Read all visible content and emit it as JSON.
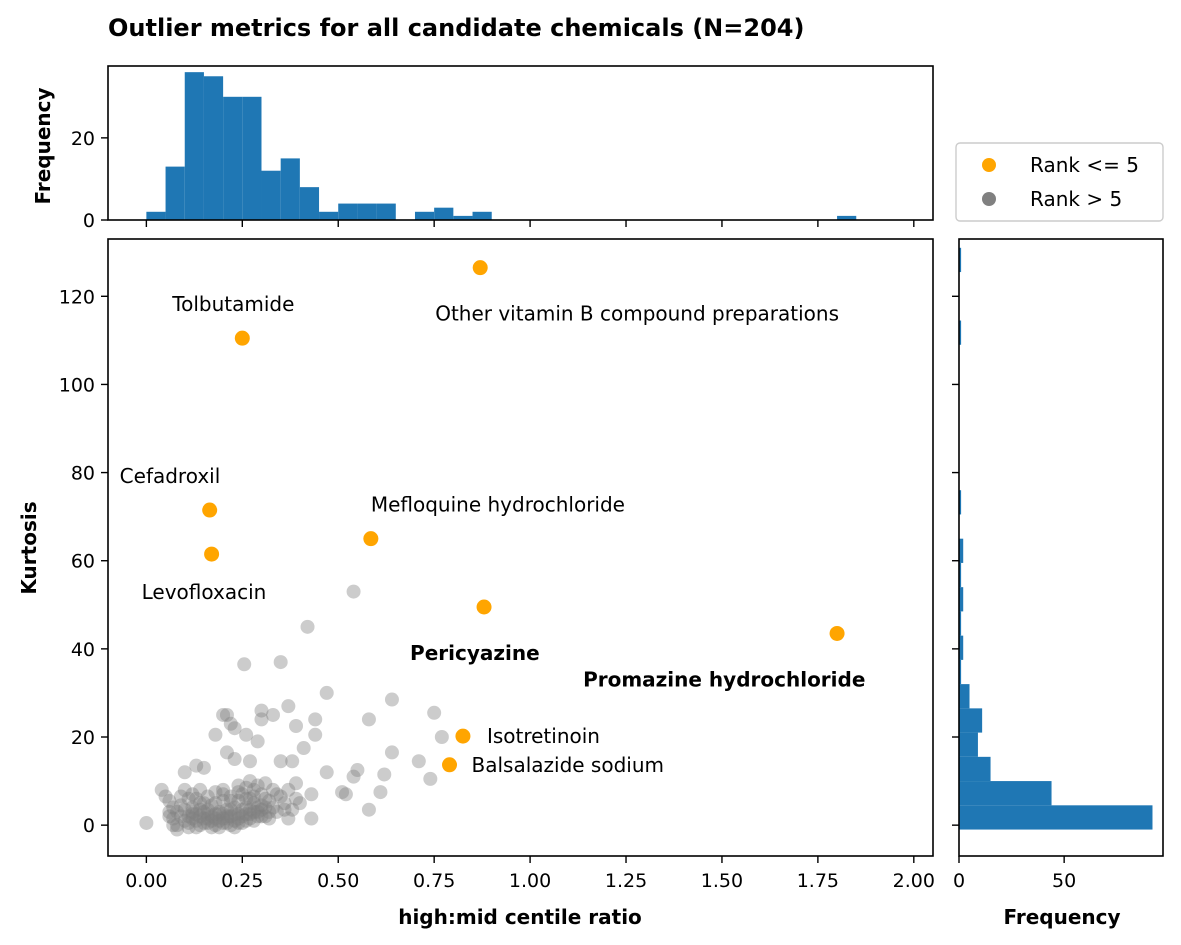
{
  "title": "Outlier metrics for all candidate chemicals (N=204)",
  "colors": {
    "rank_top": "#ffa500",
    "rank_rest": "#808080",
    "hist": "#1f77b4"
  },
  "chart_data": {
    "type": "scatter",
    "xlabel": "high:mid centile ratio",
    "ylabel": "Kurtosis",
    "xlim": [
      -0.1,
      2.05
    ],
    "ylim": [
      -7,
      133
    ],
    "xticks": [
      "0.00",
      "0.25",
      "0.50",
      "0.75",
      "1.00",
      "1.25",
      "1.50",
      "1.75",
      "2.00"
    ],
    "xtick_values": [
      0,
      0.25,
      0.5,
      0.75,
      1.0,
      1.25,
      1.5,
      1.75,
      2.0
    ],
    "yticks": [
      "0",
      "20",
      "40",
      "60",
      "80",
      "100",
      "120"
    ],
    "ytick_values": [
      0,
      20,
      40,
      60,
      80,
      100,
      120
    ],
    "legend": {
      "position": "right of top histogram",
      "entries": [
        {
          "label": "Rank <= 5",
          "color": "#ffa500"
        },
        {
          "label": "Rank > 5",
          "color": "#808080"
        }
      ]
    },
    "highlighted": [
      {
        "name": "Other vitamin B compound preparations",
        "x": 0.87,
        "y": 126.5,
        "bold": false
      },
      {
        "name": "Tolbutamide",
        "x": 0.25,
        "y": 110.5,
        "bold": false
      },
      {
        "name": "Cefadroxil",
        "x": 0.165,
        "y": 71.5,
        "bold": false
      },
      {
        "name": "Mefloquine hydrochloride",
        "x": 0.585,
        "y": 65.0,
        "bold": false
      },
      {
        "name": "Levofloxacin",
        "x": 0.17,
        "y": 61.5,
        "bold": false
      },
      {
        "name": "Pericyazine",
        "x": 0.88,
        "y": 49.5,
        "bold": true
      },
      {
        "name": "Promazine hydrochloride",
        "x": 1.8,
        "y": 43.5,
        "bold": true
      },
      {
        "name": "Isotretinoin",
        "x": 0.825,
        "y": 20.2,
        "bold": false
      },
      {
        "name": "Balsalazide sodium",
        "x": 0.79,
        "y": 13.7,
        "bold": false
      }
    ],
    "others": [
      [
        0.54,
        53
      ],
      [
        0.42,
        45
      ],
      [
        0.35,
        37
      ],
      [
        0.255,
        36.5
      ],
      [
        0.47,
        30
      ],
      [
        0.64,
        28.5
      ],
      [
        0.37,
        27
      ],
      [
        0.3,
        26
      ],
      [
        0.2,
        25
      ],
      [
        0.21,
        25
      ],
      [
        0.33,
        25
      ],
      [
        0.3,
        24
      ],
      [
        0.44,
        24
      ],
      [
        0.58,
        24
      ],
      [
        0.75,
        25.5
      ],
      [
        0.22,
        23
      ],
      [
        0.39,
        22.5
      ],
      [
        0.23,
        22
      ],
      [
        0.18,
        20.5
      ],
      [
        0.44,
        20.5
      ],
      [
        0.26,
        20.5
      ],
      [
        0.77,
        20
      ],
      [
        0.29,
        19
      ],
      [
        0.41,
        17.5
      ],
      [
        0.21,
        16.5
      ],
      [
        0.64,
        16.5
      ],
      [
        0.23,
        15
      ],
      [
        0.35,
        14.5
      ],
      [
        0.27,
        14.5
      ],
      [
        0.38,
        14.5
      ],
      [
        0.71,
        14.5
      ],
      [
        0.15,
        13
      ],
      [
        0.13,
        13.5
      ],
      [
        0.1,
        12
      ],
      [
        0.55,
        12.5
      ],
      [
        0.62,
        11.5
      ],
      [
        0.54,
        11
      ],
      [
        0.47,
        12
      ],
      [
        0.74,
        10.5
      ],
      [
        0.27,
        10
      ],
      [
        0.29,
        9
      ],
      [
        0.31,
        9.5
      ],
      [
        0.33,
        8
      ],
      [
        0.39,
        9.5
      ],
      [
        0.37,
        8
      ],
      [
        0.24,
        9
      ],
      [
        0.2,
        8
      ],
      [
        0.04,
        8
      ],
      [
        0.28,
        8
      ],
      [
        0.43,
        7
      ],
      [
        0.52,
        7
      ],
      [
        0.51,
        7.5
      ],
      [
        0.61,
        7.5
      ],
      [
        0.39,
        6
      ],
      [
        0.36,
        5
      ],
      [
        0.34,
        3
      ],
      [
        0.3,
        2
      ],
      [
        0.32,
        1.5
      ],
      [
        0.37,
        1.5
      ],
      [
        0.43,
        1.5
      ],
      [
        0.58,
        3.5
      ],
      [
        0.13,
        6
      ],
      [
        0.15,
        5
      ],
      [
        0.06,
        5.5
      ],
      [
        0.07,
        4
      ],
      [
        0.08,
        3
      ],
      [
        0.09,
        6.5
      ],
      [
        0.11,
        6
      ],
      [
        0.12,
        4
      ],
      [
        0.14,
        3.5
      ],
      [
        0.16,
        2.5
      ],
      [
        0.17,
        4.5
      ],
      [
        0.18,
        1.5
      ],
      [
        0.19,
        3
      ],
      [
        0.2,
        5.5
      ],
      [
        0.21,
        2
      ],
      [
        0.22,
        6.5
      ],
      [
        0.23,
        4
      ],
      [
        0.24,
        2.5
      ],
      [
        0.25,
        7
      ],
      [
        0.26,
        1
      ],
      [
        0.27,
        3.5
      ],
      [
        0.28,
        5
      ],
      [
        0.29,
        2
      ],
      [
        0.3,
        4.5
      ],
      [
        0.31,
        6
      ],
      [
        0.32,
        3
      ],
      [
        0.07,
        1.5
      ],
      [
        0.08,
        0
      ],
      [
        0.09,
        2
      ],
      [
        0.1,
        1
      ],
      [
        0.11,
        0.5
      ],
      [
        0.12,
        2.5
      ],
      [
        0.13,
        1
      ],
      [
        0.14,
        0
      ],
      [
        0.15,
        1.5
      ],
      [
        0.16,
        0.5
      ],
      [
        0.17,
        2
      ],
      [
        0.18,
        0
      ],
      [
        0.19,
        1
      ],
      [
        0.2,
        0.5
      ],
      [
        0.21,
        1.5
      ],
      [
        0.22,
        0
      ],
      [
        0.23,
        1
      ],
      [
        0.24,
        0.5
      ],
      [
        0.25,
        2
      ],
      [
        0.26,
        4
      ],
      [
        0.27,
        6
      ],
      [
        0.28,
        1
      ],
      [
        0.12,
        3
      ],
      [
        0.14,
        5
      ],
      [
        0.16,
        3.5
      ],
      [
        0.18,
        5
      ],
      [
        0.2,
        2.5
      ],
      [
        0.22,
        3.5
      ],
      [
        0.24,
        5.5
      ],
      [
        0.26,
        6
      ],
      [
        0.1,
        3.5
      ],
      [
        0.09,
        4.5
      ],
      [
        0.06,
        2
      ],
      [
        0.07,
        0
      ],
      [
        0.08,
        -1
      ],
      [
        0.11,
        -0.5
      ],
      [
        0.13,
        -0.5
      ],
      [
        0.15,
        0.5
      ],
      [
        0.17,
        -0.5
      ],
      [
        0.19,
        -0.5
      ],
      [
        0.21,
        0.5
      ],
      [
        0.23,
        -0.5
      ],
      [
        0.25,
        0.5
      ],
      [
        0.27,
        2.5
      ],
      [
        0.29,
        4
      ],
      [
        0.31,
        2
      ],
      [
        0.33,
        4
      ],
      [
        0.35,
        6.5
      ],
      [
        0.36,
        3.5
      ],
      [
        0.38,
        3.5
      ],
      [
        0.4,
        5
      ],
      [
        0.0,
        0.5
      ],
      [
        0.05,
        6.5
      ],
      [
        0.06,
        3
      ],
      [
        0.1,
        8
      ],
      [
        0.12,
        7
      ],
      [
        0.14,
        8
      ],
      [
        0.16,
        6.5
      ],
      [
        0.18,
        7.5
      ],
      [
        0.2,
        7
      ],
      [
        0.22,
        5.5
      ],
      [
        0.24,
        7.5
      ],
      [
        0.26,
        8.5
      ],
      [
        0.28,
        6.5
      ],
      [
        0.3,
        7
      ],
      [
        0.32,
        5.5
      ],
      [
        0.34,
        7
      ],
      [
        0.11,
        2
      ],
      [
        0.13,
        2.5
      ],
      [
        0.15,
        3
      ],
      [
        0.17,
        1
      ],
      [
        0.19,
        2.5
      ],
      [
        0.21,
        3.5
      ],
      [
        0.23,
        2.5
      ],
      [
        0.25,
        3.5
      ],
      [
        0.27,
        1.5
      ],
      [
        0.29,
        3
      ],
      [
        0.31,
        4
      ],
      [
        0.12,
        1.5
      ],
      [
        0.14,
        2
      ],
      [
        0.16,
        1.5
      ],
      [
        0.18,
        2.5
      ],
      [
        0.2,
        1.5
      ],
      [
        0.22,
        2
      ],
      [
        0.24,
        1.5
      ],
      [
        0.26,
        2.5
      ],
      [
        0.28,
        3
      ],
      [
        0.3,
        3.5
      ]
    ],
    "top_histogram": {
      "ylabel": "Frequency",
      "yticks": [
        "0",
        "20"
      ],
      "ytick_values": [
        0,
        20
      ],
      "ylim": [
        0,
        37.5
      ],
      "bin_edges": [
        0.0,
        0.05,
        0.1,
        0.15,
        0.2,
        0.25,
        0.3,
        0.35,
        0.4,
        0.45,
        0.5,
        0.55,
        0.6,
        0.65,
        0.7,
        0.75,
        0.8,
        0.85,
        0.9,
        0.95,
        1.0,
        1.05,
        1.1,
        1.15,
        1.2,
        1.25,
        1.3,
        1.35,
        1.4,
        1.45,
        1.5,
        1.55,
        1.6,
        1.65,
        1.7,
        1.75,
        1.8,
        1.85
      ],
      "counts": [
        2,
        13,
        36,
        35,
        30,
        30,
        12,
        15,
        8,
        2,
        4,
        4,
        4,
        0,
        2,
        3,
        1,
        2,
        0,
        0,
        0,
        0,
        0,
        0,
        0,
        0,
        0,
        0,
        0,
        0,
        0,
        0,
        0,
        0,
        0,
        0,
        1
      ]
    },
    "right_histogram": {
      "xlabel": "Frequency",
      "xticks": [
        "0",
        "50"
      ],
      "xtick_values": [
        0,
        50
      ],
      "xlim": [
        0,
        97
      ],
      "bins": [
        {
          "y0": -1,
          "y1": 4.5,
          "count": 92
        },
        {
          "y0": 4.5,
          "y1": 10,
          "count": 44
        },
        {
          "y0": 10,
          "y1": 15.5,
          "count": 15
        },
        {
          "y0": 15.5,
          "y1": 21,
          "count": 9
        },
        {
          "y0": 21,
          "y1": 26.5,
          "count": 11
        },
        {
          "y0": 26.5,
          "y1": 32,
          "count": 5
        },
        {
          "y0": 32,
          "y1": 37.5,
          "count": 1
        },
        {
          "y0": 37.5,
          "y1": 43,
          "count": 2
        },
        {
          "y0": 43,
          "y1": 48.5,
          "count": 1
        },
        {
          "y0": 48.5,
          "y1": 54,
          "count": 2
        },
        {
          "y0": 54,
          "y1": 59.5,
          "count": 1
        },
        {
          "y0": 59.5,
          "y1": 65,
          "count": 2
        },
        {
          "y0": 65,
          "y1": 70.5,
          "count": 0
        },
        {
          "y0": 70.5,
          "y1": 76,
          "count": 1
        },
        {
          "y0": 76,
          "y1": 81.5,
          "count": 0
        },
        {
          "y0": 81.5,
          "y1": 87,
          "count": 0
        },
        {
          "y0": 87,
          "y1": 92.5,
          "count": 0
        },
        {
          "y0": 92.5,
          "y1": 98,
          "count": 0
        },
        {
          "y0": 98,
          "y1": 103.5,
          "count": 0
        },
        {
          "y0": 103.5,
          "y1": 109,
          "count": 0
        },
        {
          "y0": 109,
          "y1": 114.5,
          "count": 1
        },
        {
          "y0": 114.5,
          "y1": 120,
          "count": 0
        },
        {
          "y0": 120,
          "y1": 125.5,
          "count": 0
        },
        {
          "y0": 125.5,
          "y1": 131,
          "count": 1
        }
      ]
    }
  }
}
